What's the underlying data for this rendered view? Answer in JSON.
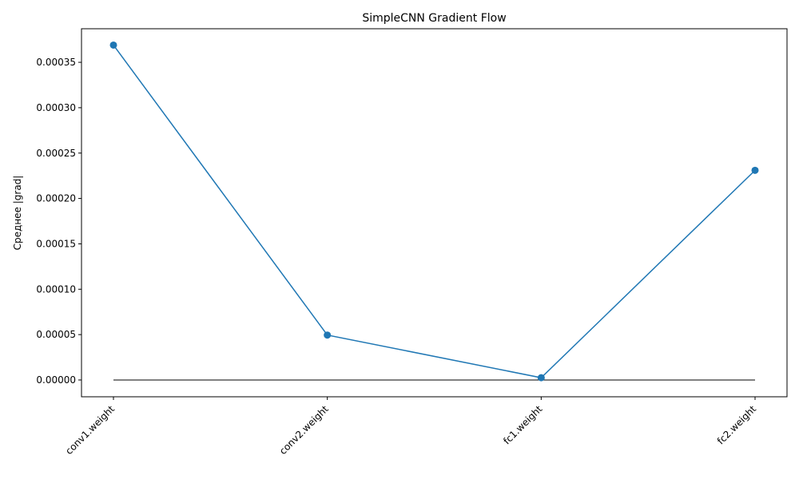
{
  "chart_data": {
    "type": "line",
    "title": "SimpleCNN Gradient Flow",
    "xlabel": "",
    "ylabel": "Среднее |grad|",
    "categories": [
      "conv1.weight",
      "conv2.weight",
      "fc1.weight",
      "fc2.weight"
    ],
    "series": [
      {
        "values": [
          0.000369,
          4.95e-05,
          2.5e-06,
          0.000231
        ],
        "color": "#1f77b4",
        "marker": "circle"
      }
    ],
    "baseline": {
      "value": 0,
      "color": "#000000"
    },
    "ylim": [
      -1.85e-05,
      0.000387
    ],
    "yticks": [
      0,
      5e-05,
      0.0001,
      0.00015,
      0.0002,
      0.00025,
      0.0003,
      0.00035
    ],
    "ytick_labels": [
      "0.00000",
      "0.00005",
      "0.00010",
      "0.00015",
      "0.00020",
      "0.00025",
      "0.00030",
      "0.00035"
    ],
    "grid": false,
    "xtick_rotation": 45
  }
}
